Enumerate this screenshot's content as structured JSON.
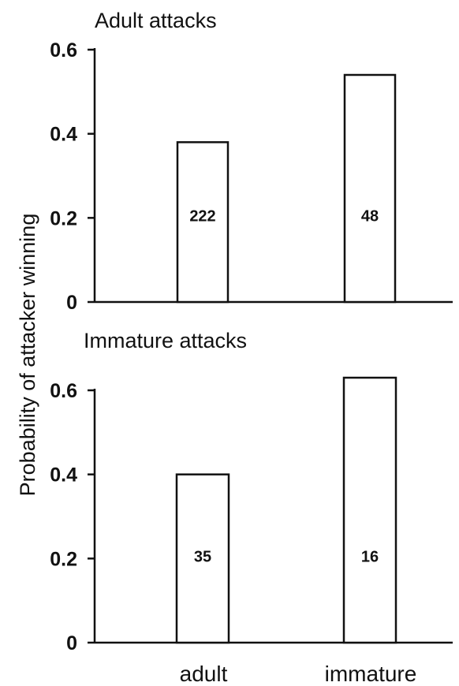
{
  "figure": {
    "ylabel": "Probability of attacker winning"
  },
  "chart_data": [
    {
      "type": "bar",
      "title": "Adult attacks",
      "categories": [
        "adult",
        "immature"
      ],
      "values": [
        0.38,
        0.54
      ],
      "data_labels": [
        "222",
        "48"
      ],
      "xlabel": "",
      "ylabel": "Probability of attacker winning",
      "ylim": [
        0,
        0.6
      ],
      "yticks": [
        0,
        0.2,
        0.4,
        0.6
      ],
      "ytick_labels": [
        "0",
        "0.2",
        "0.4",
        "0.6"
      ],
      "grid": false,
      "bar_color": "#ffffff",
      "edge_color": "#111111"
    },
    {
      "type": "bar",
      "title": "Immature attacks",
      "categories": [
        "adult",
        "immature"
      ],
      "values": [
        0.4,
        0.63
      ],
      "data_labels": [
        "35",
        "16"
      ],
      "xlabel": "",
      "ylabel": "Probability of attacker winning",
      "ylim": [
        0,
        0.6
      ],
      "yticks": [
        0,
        0.2,
        0.4,
        0.6
      ],
      "ytick_labels": [
        "0",
        "0.2",
        "0.4",
        "0.6"
      ],
      "grid": false,
      "bar_color": "#ffffff",
      "edge_color": "#111111"
    }
  ]
}
